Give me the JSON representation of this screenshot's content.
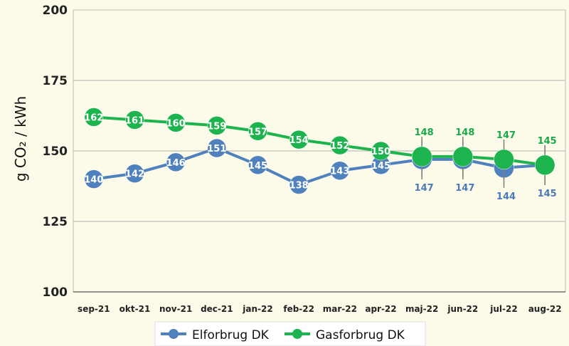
{
  "chart_data": {
    "type": "line",
    "title": "",
    "xlabel": "",
    "ylabel": "g CO₂ / kWh",
    "ylim": [
      100,
      200
    ],
    "yticks": [
      100,
      125,
      150,
      175,
      200
    ],
    "grid": true,
    "legend_position": "bottom",
    "categories": [
      "sep-21",
      "okt-21",
      "nov-21",
      "dec-21",
      "jan-22",
      "feb-22",
      "mar-22",
      "apr-22",
      "maj-22",
      "jun-22",
      "jul-22",
      "aug-22"
    ],
    "series": [
      {
        "name": "Elforbrug DK",
        "color": "#4f81bd",
        "values": [
          140,
          142,
          146,
          151,
          145,
          138,
          143,
          145,
          147,
          147,
          144,
          145
        ],
        "labels": [
          "140",
          "142",
          "146",
          "151",
          "145",
          "138",
          "143",
          "145",
          "147",
          "147",
          "144",
          "145"
        ]
      },
      {
        "name": "Gasforbrug DK",
        "color": "#1db34f",
        "values": [
          162,
          161,
          160,
          159,
          157,
          154,
          152,
          150,
          148,
          148,
          147,
          145
        ],
        "labels": [
          "162",
          "161",
          "160",
          "159",
          "157",
          "154",
          "152",
          "150",
          "148",
          "148",
          "147",
          "145"
        ]
      }
    ]
  }
}
